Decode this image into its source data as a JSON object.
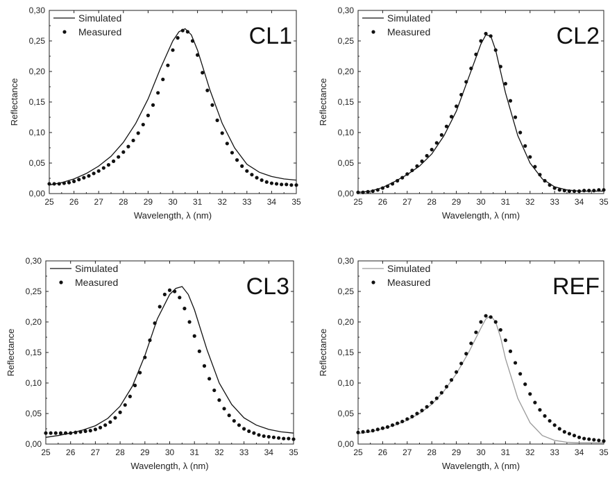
{
  "chart_data": [
    {
      "type": "line",
      "panel_label": "CL1",
      "xlabel": "Wavelength, λ (nm)",
      "ylabel": "Reflectance",
      "xlim": [
        25,
        35
      ],
      "ylim": [
        0,
        0.3
      ],
      "xticks": [
        "25",
        "26",
        "27",
        "28",
        "29",
        "30",
        "31",
        "32",
        "33",
        "34",
        "35"
      ],
      "yticks": [
        "0,00",
        "0,05",
        "0,10",
        "0,15",
        "0,20",
        "0,25",
        "0,30"
      ],
      "legend_position": "top-left",
      "series": [
        {
          "name": "Simulated",
          "type": "line",
          "color": "#111111",
          "x": [
            25,
            25.5,
            26,
            26.5,
            27,
            27.5,
            28,
            28.5,
            29,
            29.5,
            30,
            30.25,
            30.5,
            30.75,
            31,
            31.5,
            32,
            32.5,
            33,
            33.5,
            34,
            34.5,
            35
          ],
          "y": [
            0.014,
            0.018,
            0.024,
            0.033,
            0.045,
            0.061,
            0.084,
            0.115,
            0.155,
            0.205,
            0.25,
            0.265,
            0.27,
            0.26,
            0.235,
            0.17,
            0.115,
            0.075,
            0.048,
            0.035,
            0.028,
            0.024,
            0.022
          ]
        },
        {
          "name": "Measured",
          "type": "scatter",
          "color": "#111111",
          "x": [
            25,
            25.2,
            25.4,
            25.6,
            25.8,
            26,
            26.2,
            26.4,
            26.6,
            26.8,
            27,
            27.2,
            27.4,
            27.6,
            27.8,
            28,
            28.2,
            28.4,
            28.6,
            28.8,
            29,
            29.2,
            29.4,
            29.6,
            29.8,
            30,
            30.2,
            30.4,
            30.6,
            30.8,
            31,
            31.2,
            31.4,
            31.6,
            31.8,
            32,
            32.2,
            32.4,
            32.6,
            32.8,
            33,
            33.2,
            33.4,
            33.6,
            33.8,
            34,
            34.2,
            34.4,
            34.6,
            34.8,
            35
          ],
          "y": [
            0.016,
            0.016,
            0.016,
            0.017,
            0.018,
            0.02,
            0.023,
            0.026,
            0.029,
            0.033,
            0.037,
            0.042,
            0.047,
            0.053,
            0.06,
            0.068,
            0.077,
            0.087,
            0.099,
            0.113,
            0.128,
            0.145,
            0.165,
            0.187,
            0.21,
            0.235,
            0.255,
            0.267,
            0.265,
            0.25,
            0.227,
            0.198,
            0.169,
            0.145,
            0.12,
            0.099,
            0.082,
            0.067,
            0.055,
            0.045,
            0.037,
            0.031,
            0.026,
            0.022,
            0.019,
            0.017,
            0.016,
            0.015,
            0.015,
            0.014,
            0.014
          ]
        }
      ]
    },
    {
      "type": "line",
      "panel_label": "CL2",
      "xlabel": "Wavelength, λ (nm)",
      "ylabel": "Reflectance",
      "xlim": [
        25,
        35
      ],
      "ylim": [
        0,
        0.3
      ],
      "xticks": [
        "25",
        "26",
        "27",
        "28",
        "29",
        "30",
        "31",
        "32",
        "33",
        "34",
        "35"
      ],
      "yticks": [
        "0,00",
        "0,05",
        "0,10",
        "0,15",
        "0,20",
        "0,25",
        "0,30"
      ],
      "legend_position": "top-left",
      "series": [
        {
          "name": "Simulated",
          "type": "line",
          "color": "#111111",
          "x": [
            25,
            25.5,
            26,
            26.5,
            27,
            27.5,
            28,
            28.5,
            29,
            29.5,
            30,
            30.2,
            30.4,
            30.6,
            30.8,
            31,
            31.5,
            32,
            32.5,
            33,
            33.5,
            34,
            34.5,
            35
          ],
          "y": [
            0.002,
            0.004,
            0.01,
            0.02,
            0.031,
            0.045,
            0.065,
            0.095,
            0.135,
            0.19,
            0.245,
            0.26,
            0.258,
            0.235,
            0.2,
            0.165,
            0.095,
            0.05,
            0.024,
            0.011,
            0.006,
            0.004,
            0.004,
            0.004
          ]
        },
        {
          "name": "Measured",
          "type": "scatter",
          "color": "#111111",
          "x": [
            25,
            25.2,
            25.4,
            25.6,
            25.8,
            26,
            26.2,
            26.4,
            26.6,
            26.8,
            27,
            27.2,
            27.4,
            27.6,
            27.8,
            28,
            28.2,
            28.4,
            28.6,
            28.8,
            29,
            29.2,
            29.4,
            29.6,
            29.8,
            30,
            30.2,
            30.4,
            30.6,
            30.8,
            31,
            31.2,
            31.4,
            31.6,
            31.8,
            32,
            32.2,
            32.4,
            32.6,
            32.8,
            33,
            33.2,
            33.4,
            33.6,
            33.8,
            34,
            34.2,
            34.4,
            34.6,
            34.8,
            35
          ],
          "y": [
            0.002,
            0.002,
            0.003,
            0.004,
            0.006,
            0.009,
            0.012,
            0.016,
            0.021,
            0.026,
            0.032,
            0.038,
            0.045,
            0.053,
            0.062,
            0.072,
            0.083,
            0.096,
            0.11,
            0.126,
            0.143,
            0.162,
            0.183,
            0.205,
            0.228,
            0.25,
            0.262,
            0.258,
            0.235,
            0.208,
            0.18,
            0.152,
            0.125,
            0.1,
            0.078,
            0.06,
            0.044,
            0.031,
            0.021,
            0.014,
            0.009,
            0.006,
            0.005,
            0.004,
            0.004,
            0.004,
            0.005,
            0.005,
            0.005,
            0.006,
            0.006
          ]
        }
      ]
    },
    {
      "type": "line",
      "panel_label": "CL3",
      "xlabel": "Wavelength, λ (nm)",
      "ylabel": "Reflectance",
      "xlim": [
        25,
        35
      ],
      "ylim": [
        0,
        0.3
      ],
      "xticks": [
        "25",
        "26",
        "27",
        "28",
        "29",
        "30",
        "31",
        "32",
        "33",
        "34",
        "35"
      ],
      "yticks": [
        "0,00",
        "0,05",
        "0,10",
        "0,15",
        "0,20",
        "0,25",
        "0,30"
      ],
      "legend_position": "top-left",
      "series": [
        {
          "name": "Simulated",
          "type": "line",
          "color": "#111111",
          "x": [
            25,
            25.5,
            26,
            26.5,
            27,
            27.5,
            28,
            28.5,
            29,
            29.5,
            30,
            30.25,
            30.5,
            30.75,
            31,
            31.5,
            32,
            32.5,
            33,
            33.5,
            34,
            34.5,
            35
          ],
          "y": [
            0.011,
            0.014,
            0.018,
            0.023,
            0.03,
            0.042,
            0.062,
            0.095,
            0.145,
            0.205,
            0.245,
            0.255,
            0.258,
            0.245,
            0.22,
            0.155,
            0.1,
            0.065,
            0.043,
            0.031,
            0.024,
            0.02,
            0.018
          ]
        },
        {
          "name": "Measured",
          "type": "scatter",
          "color": "#111111",
          "x": [
            25,
            25.2,
            25.4,
            25.6,
            25.8,
            26,
            26.2,
            26.4,
            26.6,
            26.8,
            27,
            27.2,
            27.4,
            27.6,
            27.8,
            28,
            28.2,
            28.4,
            28.6,
            28.8,
            29,
            29.2,
            29.4,
            29.6,
            29.8,
            30,
            30.2,
            30.4,
            30.6,
            30.8,
            31,
            31.2,
            31.4,
            31.6,
            31.8,
            32,
            32.2,
            32.4,
            32.6,
            32.8,
            33,
            33.2,
            33.4,
            33.6,
            33.8,
            34,
            34.2,
            34.4,
            34.6,
            34.8,
            35
          ],
          "y": [
            0.018,
            0.018,
            0.018,
            0.018,
            0.018,
            0.018,
            0.019,
            0.02,
            0.021,
            0.022,
            0.024,
            0.027,
            0.031,
            0.036,
            0.043,
            0.052,
            0.064,
            0.078,
            0.096,
            0.117,
            0.142,
            0.17,
            0.198,
            0.225,
            0.245,
            0.252,
            0.25,
            0.24,
            0.222,
            0.2,
            0.177,
            0.152,
            0.128,
            0.107,
            0.088,
            0.072,
            0.058,
            0.047,
            0.038,
            0.031,
            0.025,
            0.021,
            0.018,
            0.015,
            0.013,
            0.012,
            0.011,
            0.01,
            0.009,
            0.009,
            0.008
          ]
        }
      ]
    },
    {
      "type": "line",
      "panel_label": "REF",
      "xlabel": "Wavelength, λ (nm)",
      "ylabel": "Reflectance",
      "xlim": [
        25,
        35
      ],
      "ylim": [
        0,
        0.3
      ],
      "xticks": [
        "25",
        "26",
        "27",
        "28",
        "29",
        "30",
        "31",
        "32",
        "33",
        "34",
        "35"
      ],
      "yticks": [
        "0,00",
        "0,05",
        "0,10",
        "0,15",
        "0,20",
        "0,25",
        "0,30"
      ],
      "legend_position": "top-left",
      "series": [
        {
          "name": "Simulated",
          "type": "line",
          "color": "#999999",
          "x": [
            25,
            25.5,
            26,
            26.5,
            27,
            27.5,
            28,
            28.5,
            29,
            29.5,
            30,
            30.2,
            30.4,
            30.6,
            30.8,
            31,
            31.5,
            32,
            32.5,
            33,
            33.5,
            34,
            34.5,
            35
          ],
          "y": [
            0.017,
            0.02,
            0.025,
            0.031,
            0.039,
            0.05,
            0.065,
            0.087,
            0.115,
            0.15,
            0.19,
            0.205,
            0.21,
            0.2,
            0.175,
            0.14,
            0.075,
            0.035,
            0.014,
            0.006,
            0.003,
            0.002,
            0.002,
            0.002
          ]
        },
        {
          "name": "Measured",
          "type": "scatter",
          "color": "#111111",
          "x": [
            25,
            25.2,
            25.4,
            25.6,
            25.8,
            26,
            26.2,
            26.4,
            26.6,
            26.8,
            27,
            27.2,
            27.4,
            27.6,
            27.8,
            28,
            28.2,
            28.4,
            28.6,
            28.8,
            29,
            29.2,
            29.4,
            29.6,
            29.8,
            30,
            30.2,
            30.4,
            30.6,
            30.8,
            31,
            31.2,
            31.4,
            31.6,
            31.8,
            32,
            32.2,
            32.4,
            32.6,
            32.8,
            33,
            33.2,
            33.4,
            33.6,
            33.8,
            34,
            34.2,
            34.4,
            34.6,
            34.8,
            35
          ],
          "y": [
            0.019,
            0.02,
            0.021,
            0.022,
            0.024,
            0.026,
            0.028,
            0.031,
            0.034,
            0.037,
            0.041,
            0.045,
            0.05,
            0.055,
            0.061,
            0.068,
            0.075,
            0.084,
            0.094,
            0.105,
            0.118,
            0.132,
            0.148,
            0.165,
            0.183,
            0.2,
            0.21,
            0.208,
            0.2,
            0.187,
            0.17,
            0.152,
            0.133,
            0.115,
            0.098,
            0.082,
            0.068,
            0.056,
            0.046,
            0.038,
            0.031,
            0.025,
            0.02,
            0.017,
            0.014,
            0.011,
            0.009,
            0.008,
            0.007,
            0.006,
            0.005
          ]
        }
      ]
    }
  ]
}
